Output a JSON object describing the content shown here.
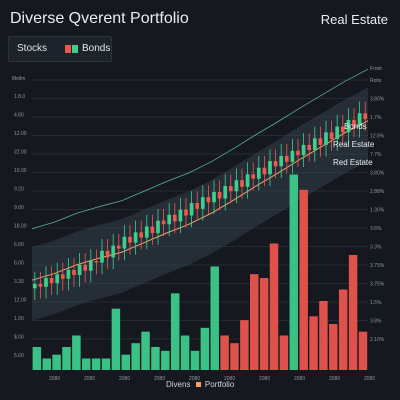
{
  "title": "Diverse Qverent Portfolio",
  "right_title": "Real Estate",
  "legend": {
    "stocks": "Stocks",
    "bonds": "Bonds"
  },
  "x_caption": {
    "left": "Divens",
    "right": "Portfolio"
  },
  "colors": {
    "background": "#15191f",
    "up": "#3ecf8e",
    "down": "#f0574f",
    "trend": "#f0a06a",
    "band": "#3a4a55"
  },
  "chart_data": {
    "type": "candlestick-and-bar",
    "title": "Diverse Qverent Portfolio",
    "y_ticks_left": [
      "1.8.0",
      "4.80",
      "12.00",
      "22.00",
      "19.00",
      "9.20",
      "9.00",
      "18.00",
      "6.00",
      "6.00",
      "3.30",
      "12.00",
      "1.00",
      "$.00",
      "5.00"
    ],
    "y_ticks_right": [
      "Rotis",
      "3.80%",
      "1.7%",
      "12.8%",
      "7.7%",
      "3.80%",
      "2.88%",
      "1.30%",
      "3.6%",
      "3.3%",
      "3.75%",
      "3.75%",
      "1.5%",
      "3.8%",
      "2.10%"
    ],
    "y_header_left": "Mellm",
    "y_header_right": "Frnet",
    "x_ticks": [
      "2080",
      "2080",
      "2080",
      "2080",
      "2080",
      "2080",
      "2080",
      "2080",
      "2080",
      "2080"
    ],
    "annotations": [
      "Bonds",
      "Real Estate",
      "Red Estate"
    ],
    "candles_close": [
      12.0,
      11.6,
      12.8,
      12.1,
      13.3,
      12.7,
      13.9,
      13.2,
      14.6,
      13.8,
      15.1,
      14.9,
      16.5,
      15.6,
      17.2,
      16.8,
      18.4,
      17.6,
      19.0,
      18.3,
      19.8,
      18.9,
      20.6,
      20.1,
      21.4,
      20.5,
      22.1,
      21.3,
      23.0,
      22.2,
      23.8,
      23.1,
      24.5,
      23.6,
      25.3,
      24.6,
      26.1,
      25.2,
      26.9,
      26.3,
      27.8,
      26.9,
      28.7,
      28.0,
      29.4,
      28.6,
      30.1,
      29.5,
      30.9,
      30.2,
      31.8,
      30.9,
      32.6,
      31.7,
      33.4,
      32.6,
      34.3,
      33.5,
      35.2,
      34.4
    ],
    "trend_line": [
      12.5,
      13.4,
      14.6,
      15.5,
      16.3,
      17.6,
      18.9,
      20.1,
      21.6,
      23.4,
      25.3,
      27.1,
      29.0,
      30.8,
      32.6,
      34.2
    ],
    "volume": [
      {
        "value": 6,
        "dir": "up"
      },
      {
        "value": 3,
        "dir": "up"
      },
      {
        "value": 4,
        "dir": "up"
      },
      {
        "value": 6,
        "dir": "up"
      },
      {
        "value": 9,
        "dir": "up"
      },
      {
        "value": 3,
        "dir": "up"
      },
      {
        "value": 3,
        "dir": "up"
      },
      {
        "value": 3,
        "dir": "up"
      },
      {
        "value": 16,
        "dir": "up"
      },
      {
        "value": 4,
        "dir": "up"
      },
      {
        "value": 7,
        "dir": "up"
      },
      {
        "value": 10,
        "dir": "up"
      },
      {
        "value": 6,
        "dir": "up"
      },
      {
        "value": 5,
        "dir": "up"
      },
      {
        "value": 20,
        "dir": "up"
      },
      {
        "value": 9,
        "dir": "up"
      },
      {
        "value": 5,
        "dir": "up"
      },
      {
        "value": 11,
        "dir": "up"
      },
      {
        "value": 27,
        "dir": "up"
      },
      {
        "value": 9,
        "dir": "down"
      },
      {
        "value": 7,
        "dir": "down"
      },
      {
        "value": 13,
        "dir": "down"
      },
      {
        "value": 25,
        "dir": "down"
      },
      {
        "value": 24,
        "dir": "down"
      },
      {
        "value": 33,
        "dir": "down"
      },
      {
        "value": 9,
        "dir": "down"
      },
      {
        "value": 51,
        "dir": "up"
      },
      {
        "value": 47,
        "dir": "down"
      },
      {
        "value": 14,
        "dir": "down"
      },
      {
        "value": 18,
        "dir": "down"
      },
      {
        "value": 12,
        "dir": "down"
      },
      {
        "value": 21,
        "dir": "down"
      },
      {
        "value": 30,
        "dir": "down"
      },
      {
        "value": 10,
        "dir": "down"
      }
    ]
  }
}
